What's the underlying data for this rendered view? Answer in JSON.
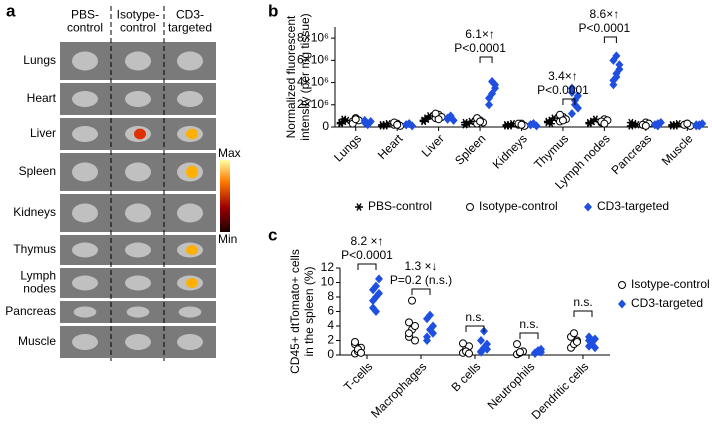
{
  "panel_a": {
    "label": "a",
    "columns": [
      [
        "PBS-",
        "control"
      ],
      [
        "Isotype-",
        "control"
      ],
      [
        "CD3-",
        "targeted"
      ]
    ],
    "rows": [
      "Lungs",
      "Heart",
      "Liver",
      "Spleen",
      "Kidneys",
      "Thymus",
      [
        "Lymph",
        "nodes"
      ],
      "Pancreas",
      "Muscle"
    ],
    "colorbar": {
      "max": "Max",
      "min": "Min"
    }
  },
  "chart_data": [
    {
      "type": "strip",
      "panel_label": "b",
      "ylabel": [
        "Normalized fluorescent",
        "intensity (per mg tissue)"
      ],
      "categories": [
        "Lungs",
        "Heart",
        "Liver",
        "Spleen",
        "Kidneys",
        "Thymus",
        "Lymph nodes",
        "Pancreas",
        "Muscle"
      ],
      "ylim": [
        0,
        9000000
      ],
      "yticks": [
        0,
        {
          "value": 2000000,
          "label": "2×10⁶"
        },
        {
          "value": 4000000,
          "label": "4×10⁶"
        },
        {
          "value": 6000000,
          "label": "6×10⁶"
        },
        {
          "value": 8000000,
          "label": "8×10⁶"
        }
      ],
      "legend": "bottom",
      "series": [
        {
          "name": "PBS-control",
          "color": "#000000",
          "marker": "asterisk",
          "values": [
            [
              300000,
              500000,
              600000,
              400000,
              700000
            ],
            [
              100000,
              200000,
              300000,
              200000,
              100000
            ],
            [
              500000,
              800000,
              1000000,
              600000,
              700000
            ],
            [
              200000,
              300000,
              500000,
              400000,
              300000
            ],
            [
              100000,
              200000,
              300000,
              200000,
              100000
            ],
            [
              400000,
              600000,
              800000,
              500000,
              300000
            ],
            [
              300000,
              500000,
              700000,
              400000,
              500000
            ],
            [
              100000,
              300000,
              200000,
              400000,
              200000
            ],
            [
              100000,
              200000,
              300000,
              200000,
              100000
            ]
          ]
        },
        {
          "name": "Isotype-control",
          "color": "#000000",
          "marker": "circle",
          "values": [
            [
              500000,
              800000,
              600000,
              300000,
              700000
            ],
            [
              200000,
              300000,
              100000,
              400000,
              200000
            ],
            [
              800000,
              1100000,
              900000,
              1200000,
              700000
            ],
            [
              300000,
              600000,
              400000,
              800000,
              500000
            ],
            [
              200000,
              300000,
              100000,
              300000,
              200000
            ],
            [
              500000,
              900000,
              700000,
              1100000,
              600000
            ],
            [
              400000,
              700000,
              600000,
              500000,
              300000
            ],
            [
              200000,
              400000,
              300000,
              200000,
              100000
            ],
            [
              200000,
              300000,
              100000,
              200000,
              300000
            ]
          ]
        },
        {
          "name": "CD3-targeted",
          "color": "#1f4fe0",
          "marker": "diamond",
          "values": [
            [
              400000,
              300000,
              500000,
              600000,
              200000
            ],
            [
              200000,
              300000,
              100000,
              200000,
              300000
            ],
            [
              700000,
              900000,
              600000,
              800000,
              1000000
            ],
            [
              2000000,
              3000000,
              3500000,
              2600000,
              4100000,
              3800000
            ],
            [
              200000,
              300000,
              100000,
              200000,
              300000
            ],
            [
              1200000,
              2000000,
              2800000,
              3100000,
              2400000,
              1700000,
              3500000
            ],
            [
              3800000,
              4500000,
              5200000,
              6000000,
              4800000,
              5600000,
              4200000,
              6400000
            ],
            [
              200000,
              300000,
              400000,
              200000,
              100000
            ],
            [
              100000,
              200000,
              300000,
              200000,
              100000
            ]
          ]
        }
      ],
      "annotations": [
        [
          "6.1×↑",
          "P<0.0001"
        ],
        [
          "3.4×↑",
          "P<0.0001"
        ],
        [
          "8.6×↑",
          "P<0.0001"
        ]
      ]
    },
    {
      "type": "strip",
      "panel_label": "c",
      "ylabel": [
        "CD45+ dtTomato+ cells",
        "in the spleen (%)"
      ],
      "categories": [
        "T-cells",
        "Macrophages",
        "B cells",
        "Neutrophils",
        "Dendritic cells"
      ],
      "ylim": [
        0,
        12
      ],
      "yticks": [
        0,
        2,
        4,
        6,
        8,
        10,
        12
      ],
      "legend": "right",
      "series": [
        {
          "name": "Isotype-control",
          "color": "#000000",
          "marker": "circle",
          "values": [
            [
              0.2,
              0.5,
              1.0,
              1.5,
              0.8,
              0.3,
              1.8
            ],
            [
              2.5,
              3.5,
              4.0,
              4.5,
              7.5,
              2.0,
              3.0
            ],
            [
              0.3,
              0.8,
              1.2,
              1.6,
              0.5,
              0.2
            ],
            [
              0.1,
              0.3,
              0.5,
              1.5,
              0.4
            ],
            [
              1.0,
              1.5,
              2.0,
              2.5,
              3.0,
              1.8
            ]
          ]
        },
        {
          "name": "CD3-targeted",
          "color": "#1f4fe0",
          "marker": "diamond",
          "values": [
            [
              6.5,
              8.0,
              8.5,
              9.0,
              9.5,
              10.5,
              7.5,
              6.0
            ],
            [
              2.5,
              3.5,
              4.0,
              5.0,
              5.5,
              3.0,
              2.0
            ],
            [
              0.5,
              1.0,
              1.5,
              2.0,
              3.3,
              0.8,
              0.4
            ],
            [
              0.2,
              0.5,
              0.8,
              0.3,
              0.6,
              0.4
            ],
            [
              1.2,
              1.8,
              2.2,
              2.5,
              1.5,
              1.0,
              2.0
            ]
          ]
        }
      ],
      "annotations": [
        [
          "8.2 ×↑",
          "P<0.0001"
        ],
        [
          "1.3 ×↓",
          "P=0.2 (n.s.)"
        ],
        [
          "n.s."
        ],
        [
          "n.s."
        ],
        [
          "n.s."
        ]
      ]
    }
  ]
}
